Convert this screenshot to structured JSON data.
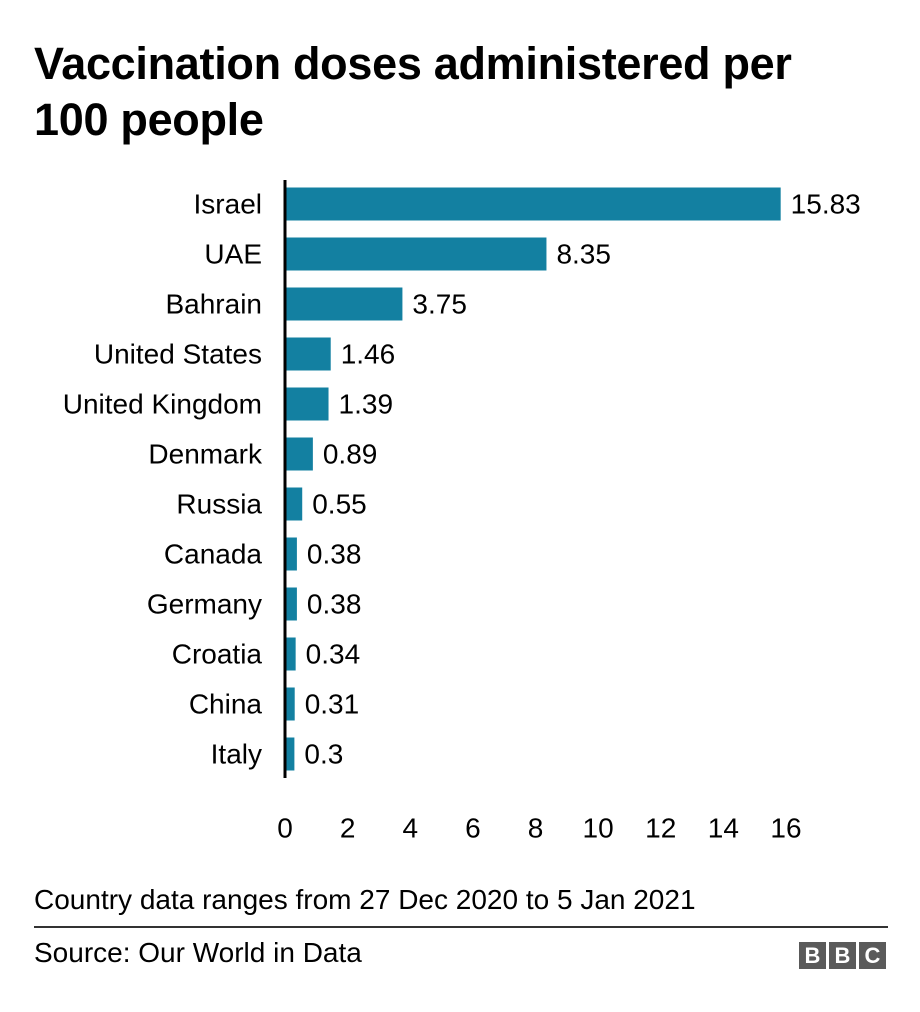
{
  "header": {
    "title": "Vaccination doses administered per 100 people"
  },
  "chart_data": {
    "type": "bar",
    "orientation": "horizontal",
    "title": "Vaccination doses administered per 100 people",
    "xlabel": "",
    "ylabel": "",
    "categories": [
      "Israel",
      "UAE",
      "Bahrain",
      "United States",
      "United Kingdom",
      "Denmark",
      "Russia",
      "Canada",
      "Germany",
      "Croatia",
      "China",
      "Italy"
    ],
    "values": [
      15.83,
      8.35,
      3.75,
      1.46,
      1.39,
      0.89,
      0.55,
      0.38,
      0.38,
      0.34,
      0.31,
      0.3
    ],
    "value_labels": [
      "15.83",
      "8.35",
      "3.75",
      "1.46",
      "1.39",
      "0.89",
      "0.55",
      "0.38",
      "0.38",
      "0.34",
      "0.31",
      "0.3"
    ],
    "xlim": [
      0,
      16
    ],
    "xticks": [
      0,
      2,
      4,
      6,
      8,
      10,
      12,
      14,
      16
    ],
    "grid": false,
    "legend": "none",
    "bar_color": "#1380a1"
  },
  "footer": {
    "note": "Country data ranges from 27 Dec 2020 to 5 Jan 2021",
    "source": "Source: Our World in Data",
    "logo_letters": [
      "B",
      "B",
      "C"
    ]
  }
}
